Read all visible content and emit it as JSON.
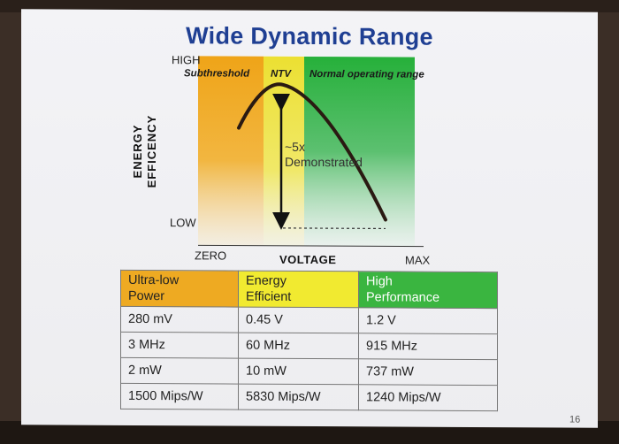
{
  "slide": {
    "title": "Wide Dynamic Range",
    "page_number": "16"
  },
  "figure": {
    "y_axis_label_line1": "ENERGY",
    "y_axis_label_line2": "EFFICENCY",
    "y_high": "HIGH",
    "y_low": "LOW",
    "x_zero": "ZERO",
    "x_label": "VOLTAGE",
    "x_max": "MAX",
    "regions": [
      {
        "label": "Subthreshold",
        "color": "#f0a820"
      },
      {
        "label": "NTV",
        "color": "#efe642"
      },
      {
        "label": "Normal operating range",
        "color": "#2fb23c"
      }
    ],
    "annotation_line1": "~5x",
    "annotation_line2": "Demonstrated"
  },
  "table": {
    "headers": [
      {
        "line1": "Ultra-low",
        "line2": "Power",
        "color": "#eeaa22"
      },
      {
        "line1": "Energy",
        "line2": "Efficient",
        "color": "#f1ea30"
      },
      {
        "line1": "High",
        "line2": "Performance",
        "color": "#3ab540"
      }
    ],
    "rows": [
      [
        "280 mV",
        "0.45 V",
        "1.2 V"
      ],
      [
        "3 MHz",
        "60 MHz",
        "915 MHz"
      ],
      [
        "2 mW",
        "10 mW",
        "737 mW"
      ],
      [
        "1500 Mips/W",
        "5830 Mips/W",
        "1240 Mips/W"
      ]
    ]
  }
}
